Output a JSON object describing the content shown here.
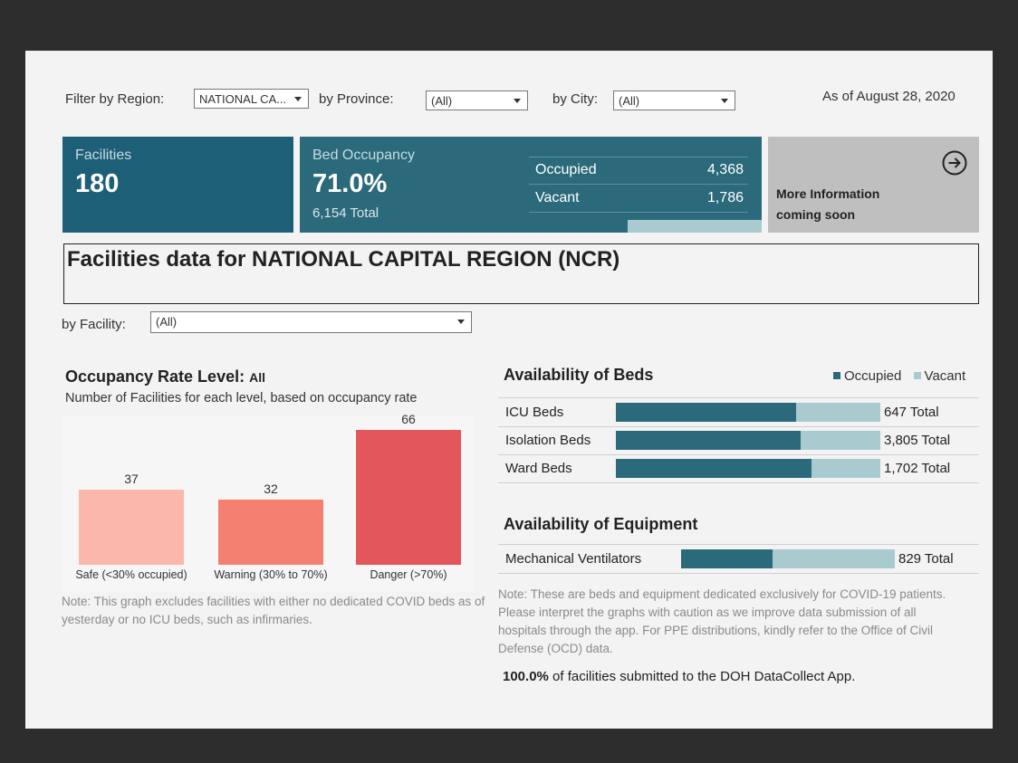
{
  "filters": {
    "region_label": "Filter by Region:",
    "region_value": "NATIONAL CA...",
    "province_label": "by Province:",
    "province_value": "(All)",
    "city_label": "by City:",
    "city_value": "(All)",
    "as_of": "As of August 28, 2020"
  },
  "kpi": {
    "facilities_title": "Facilities",
    "facilities_value": "180",
    "bed_title": "Bed Occupancy",
    "bed_rate": "71.0%",
    "bed_total": "6,154 Total",
    "occupied_label": "Occupied",
    "occupied_value": "4,368",
    "vacant_label": "Vacant",
    "vacant_value": "1,786",
    "more_line1": "More Information",
    "more_line2": "coming soon",
    "more_icon": "arrow-circle-right-icon"
  },
  "region_heading": "Facilities data for NATIONAL CAPITAL REGION (NCR)",
  "facility_filter": {
    "label": "by Facility:",
    "value": "(All)"
  },
  "occupancy": {
    "title": "Occupancy Rate Level:",
    "title_suffix": "All",
    "subtitle": "Number of Facilities for each level, based on occupancy rate",
    "note": "Note: This graph excludes facilities with either no dedicated COVID beds as of yesterday or no ICU beds, such as infirmaries."
  },
  "chart_data": {
    "type": "bar",
    "categories": [
      "Safe (<30% occupied)",
      "Warning (30% to 70%)",
      "Danger (>70%)"
    ],
    "values": [
      37,
      32,
      66
    ],
    "colors": [
      "#fbb7aa",
      "#f48072",
      "#e2565c"
    ],
    "ylim": [
      0,
      72
    ]
  },
  "beds": {
    "title": "Availability of Beds",
    "legend": [
      {
        "label": "Occupied",
        "color": "#2b6a7a"
      },
      {
        "label": "Vacant",
        "color": "#a9cbd0"
      }
    ],
    "rows": [
      {
        "label": "ICU Beds",
        "occupied_fraction": 0.68,
        "total": "647 Total"
      },
      {
        "label": "Isolation Beds",
        "occupied_fraction": 0.7,
        "total": "3,805 Total"
      },
      {
        "label": "Ward Beds",
        "occupied_fraction": 0.74,
        "total": "1,702 Total"
      }
    ]
  },
  "equipment": {
    "title": "Availability of Equipment",
    "rows": [
      {
        "label": "Mechanical Ventilators",
        "occupied_fraction": 0.43,
        "total": "829 Total"
      }
    ]
  },
  "footer": {
    "note": "Note: These are beds and equipment dedicated exclusively for COVID-19 patients. Please interpret the graphs with caution as we improve data submission of all hospitals through the app. For PPE distributions, kindly refer to the Office of Civil Defense (OCD) data.",
    "submitted_pct": "100.0%",
    "submitted_text": " of facilities submitted to the DOH DataCollect App."
  }
}
